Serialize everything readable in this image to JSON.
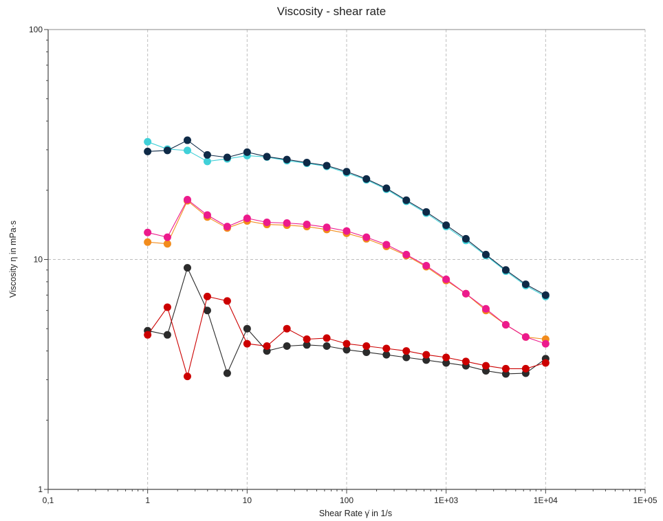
{
  "chart_data": {
    "type": "scatter",
    "title": "Viscosity - shear rate",
    "xlabel": "Shear Rate γ̇ in 1/s",
    "ylabel": "Viscosity η in mPa·s",
    "xscale": "log",
    "yscale": "log",
    "xlim": [
      0.1,
      100000
    ],
    "ylim": [
      1,
      100
    ],
    "grid": true,
    "x_ticks": [
      {
        "value": 0.1,
        "label": "0,1"
      },
      {
        "value": 1,
        "label": "1"
      },
      {
        "value": 10,
        "label": "10"
      },
      {
        "value": 100,
        "label": "100"
      },
      {
        "value": 1000,
        "label": "1E+03"
      },
      {
        "value": 10000,
        "label": "1E+04"
      },
      {
        "value": 100000,
        "label": "1E+05"
      }
    ],
    "y_ticks": [
      {
        "value": 1,
        "label": "1"
      },
      {
        "value": 10,
        "label": "10"
      },
      {
        "value": 100,
        "label": "100"
      }
    ],
    "x": [
      1,
      1.58,
      2.51,
      3.98,
      6.31,
      10,
      15.8,
      25.1,
      39.8,
      63.1,
      100,
      158,
      251,
      398,
      631,
      1000,
      1580,
      2510,
      3980,
      6310,
      10000
    ],
    "series": [
      {
        "color": "#40d0d8",
        "values": [
          32.5,
          30.2,
          29.8,
          26.7,
          27.4,
          28.3,
          27.9,
          26.9,
          26.2,
          25.4,
          23.8,
          22.2,
          20.2,
          17.9,
          15.9,
          13.9,
          12.1,
          10.4,
          8.9,
          7.7,
          6.9
        ]
      },
      {
        "color": "#0e2a47",
        "values": [
          29.5,
          29.8,
          33.0,
          28.5,
          27.8,
          29.3,
          28.0,
          27.2,
          26.4,
          25.6,
          24.1,
          22.4,
          20.4,
          18.1,
          16.1,
          14.1,
          12.3,
          10.5,
          9.0,
          7.8,
          7.0
        ]
      },
      {
        "color": "#f28c1c",
        "values": [
          11.9,
          11.7,
          18.0,
          15.3,
          13.7,
          14.7,
          14.2,
          14.1,
          13.9,
          13.5,
          13.0,
          12.3,
          11.4,
          10.4,
          9.3,
          8.1,
          7.1,
          6.0,
          5.2,
          4.6,
          4.5
        ]
      },
      {
        "color": "#ec1a8c",
        "values": [
          13.1,
          12.5,
          18.2,
          15.6,
          13.9,
          15.1,
          14.5,
          14.4,
          14.2,
          13.8,
          13.3,
          12.5,
          11.6,
          10.5,
          9.4,
          8.2,
          7.1,
          6.1,
          5.2,
          4.6,
          4.3
        ]
      },
      {
        "color": "#2b2b2b",
        "values": [
          4.9,
          4.7,
          9.2,
          6.0,
          3.2,
          5.0,
          4.0,
          4.2,
          4.25,
          4.2,
          4.05,
          3.95,
          3.85,
          3.75,
          3.65,
          3.55,
          3.45,
          3.28,
          3.18,
          3.2,
          3.7
        ]
      },
      {
        "color": "#cc0000",
        "values": [
          4.7,
          6.2,
          3.1,
          6.9,
          6.6,
          4.3,
          4.2,
          5.0,
          4.5,
          4.55,
          4.3,
          4.2,
          4.1,
          4.0,
          3.85,
          3.75,
          3.6,
          3.45,
          3.35,
          3.35,
          3.55
        ]
      }
    ]
  }
}
